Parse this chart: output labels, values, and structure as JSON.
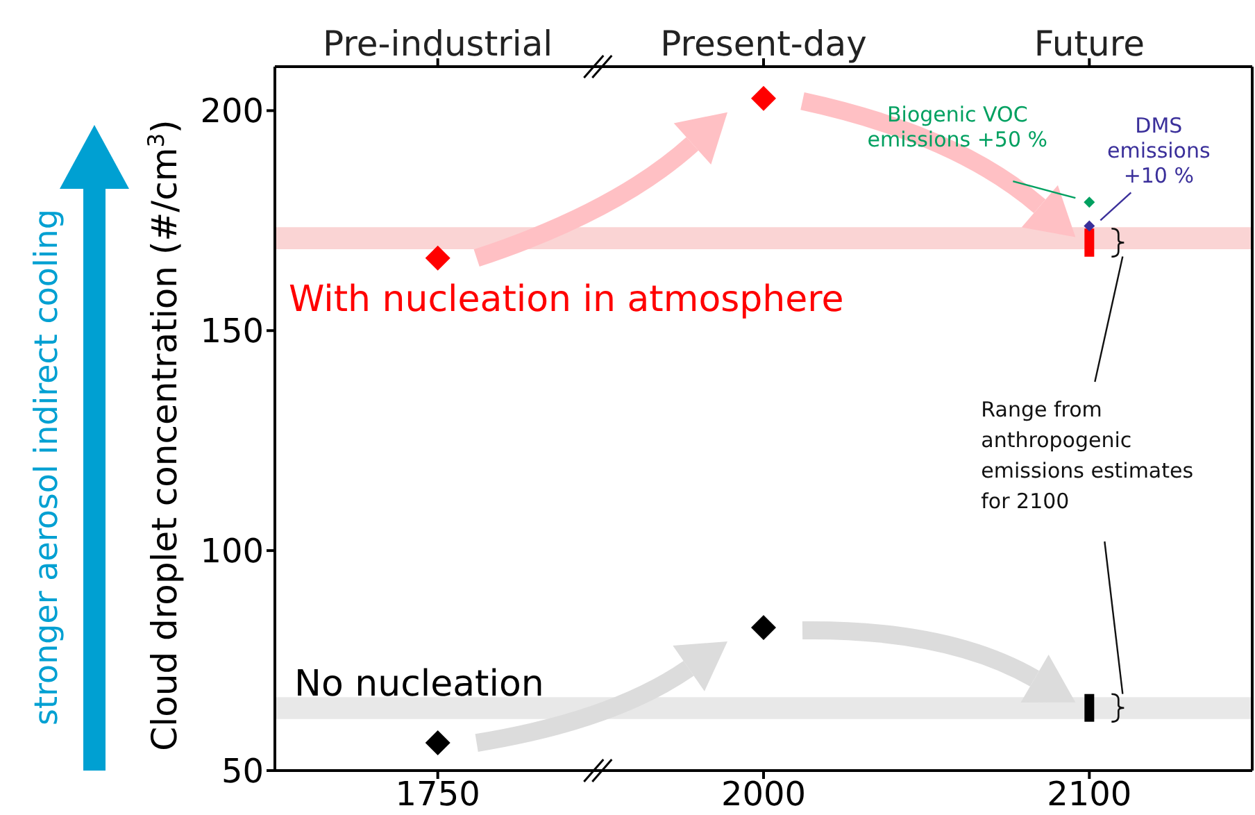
{
  "chart_data": {
    "type": "scatter",
    "categories": [
      "1750",
      "2000",
      "2100"
    ],
    "ylabel": "Cloud droplet concentration (#/cm$^{3}$)",
    "ylim": [
      50,
      210
    ],
    "yticks": [
      50,
      100,
      150,
      200
    ],
    "marker": "diamond",
    "annotations": [
      "Pre-industrial",
      "Present-day",
      "Future",
      "stronger aerosol indirect cooling",
      "Range from anthropogenic emissions estimates for 2100"
    ],
    "series": [
      {
        "name": "With nucleation in atmosphere",
        "color": "#ff0000",
        "values": [
          166.5,
          202.8,
          null
        ]
      },
      {
        "type": "bar",
        "color": "#ff0000",
        "base": [
          null,
          null,
          166.8
        ],
        "values": [
          null,
          null,
          6.4
        ]
      },
      {
        "name": "Biogenic VOC emissions +50 %",
        "color": "#00a060",
        "values": [
          null,
          null,
          179.2
        ]
      },
      {
        "name": "DMS emissions +10 %",
        "color": "#3a2f9a",
        "values": [
          null,
          null,
          173.8
        ]
      },
      {
        "name": "No nucleation",
        "color": "#000000",
        "values": [
          56.3,
          82.5,
          null
        ]
      },
      {
        "type": "bar",
        "color": "#000000",
        "base": [
          null,
          null,
          61.1
        ],
        "values": [
          null,
          null,
          6.3
        ]
      }
    ],
    "bands": [
      {
        "axis": "y",
        "from": 168.5,
        "to": 173.5,
        "color": "#fad4d4"
      },
      {
        "axis": "y",
        "from": 61.7,
        "to": 66.7,
        "color": "#e8e8e8"
      }
    ]
  }
}
